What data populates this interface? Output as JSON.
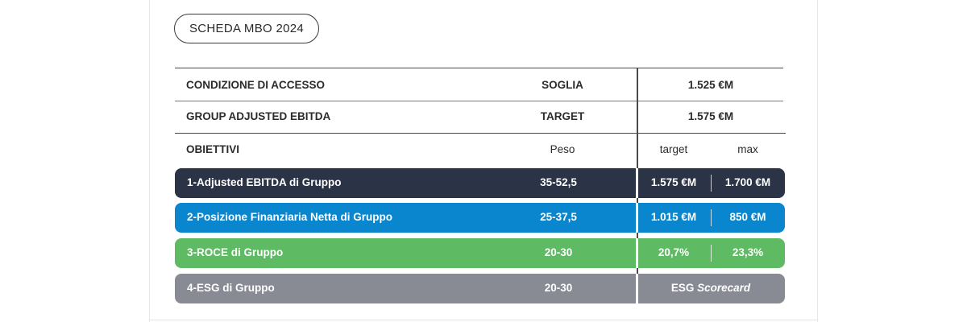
{
  "badge": "SCHEDA MBO 2024",
  "access": {
    "row1": {
      "label": "CONDIZIONE DI ACCESSO",
      "type": "SOGLIA",
      "value": "1.525 €M"
    },
    "row2": {
      "label": "GROUP ADJUSTED EBITDA",
      "type": "TARGET",
      "value": "1.575 €M"
    }
  },
  "objectives_header": {
    "label": "OBIETTIVI",
    "weight": "Peso",
    "target": "target",
    "max": "max"
  },
  "objectives": [
    {
      "label": "1-Adjusted EBITDA di Gruppo",
      "weight": "35-52,5",
      "target": "1.575 €M",
      "max": "1.700 €M",
      "color": "#2b3346"
    },
    {
      "label": "2-Posizione Finanziaria Netta di Gruppo",
      "weight": "25-37,5",
      "target": "1.015 €M",
      "max": "850 €M",
      "color": "#0a86cf"
    },
    {
      "label": "3-ROCE di Gruppo",
      "weight": "20-30",
      "target": "20,7%",
      "max": "23,3%",
      "color": "#5fba64"
    },
    {
      "label": "4-ESG di Gruppo",
      "weight": "20-30",
      "combined_prefix": "ESG",
      "combined_italic": "Scorecard",
      "color": "#888a94"
    }
  ]
}
